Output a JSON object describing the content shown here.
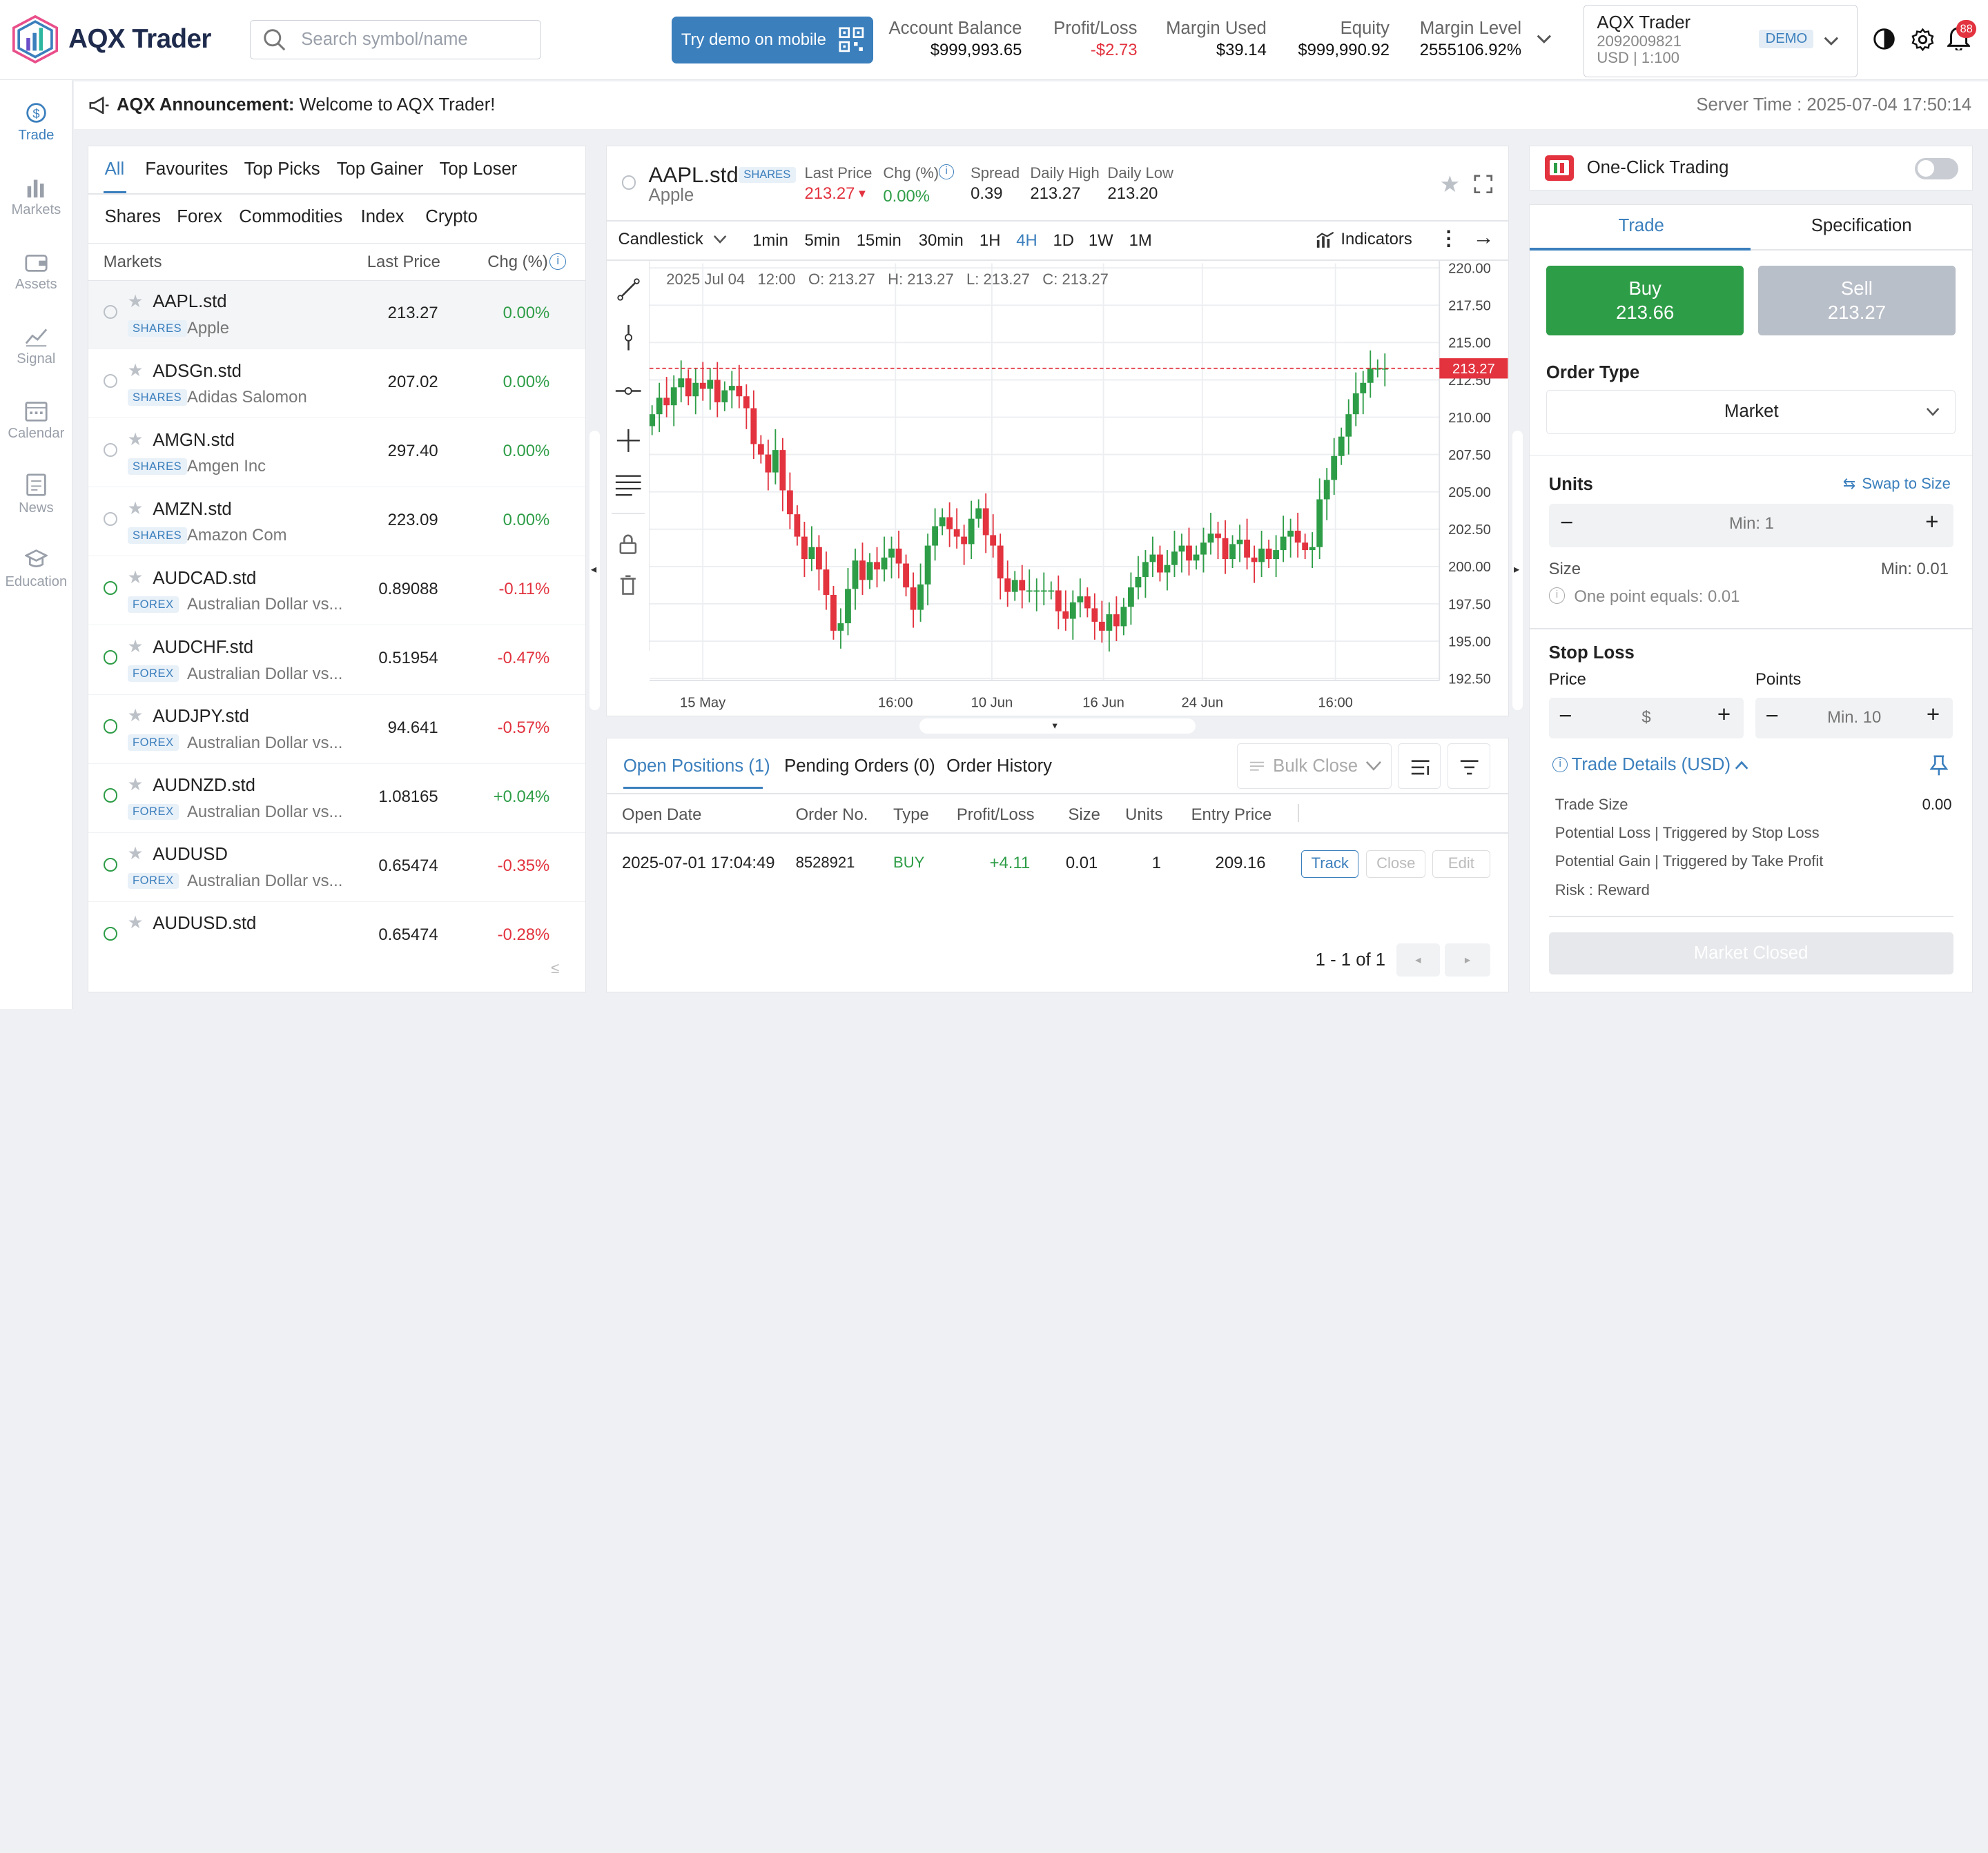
{
  "header": {
    "logo": "AQX Trader",
    "search_placeholder": "Search symbol/name",
    "demo_button": "Try demo on mobile",
    "stats": [
      {
        "label": "Account Balance",
        "value": "$999,993.65",
        "color": "#111"
      },
      {
        "label": "Profit/Loss",
        "value": "-$2.73",
        "color": "#e2333f"
      },
      {
        "label": "Margin Used",
        "value": "$39.14",
        "color": "#111"
      },
      {
        "label": "Equity",
        "value": "$999,990.92",
        "color": "#111"
      },
      {
        "label": "Margin Level",
        "value": "2555106.92%",
        "color": "#111"
      }
    ],
    "account": {
      "name": "AQX Trader",
      "number": "2092009821",
      "leverage": "USD | 1:100",
      "badge": "DEMO"
    },
    "notifications": "88"
  },
  "sidebar": [
    {
      "label": "Trade",
      "icon": "trade-icon",
      "active": true
    },
    {
      "label": "Markets",
      "icon": "markets-icon"
    },
    {
      "label": "Assets",
      "icon": "assets-icon"
    },
    {
      "label": "Signal",
      "icon": "signal-icon"
    },
    {
      "label": "Calendar",
      "icon": "calendar-icon"
    },
    {
      "label": "News",
      "icon": "news-icon"
    },
    {
      "label": "Education",
      "icon": "education-icon"
    }
  ],
  "announcement": {
    "title": "AQX Announcement:",
    "text": "Welcome to AQX Trader!",
    "server_time": "Server Time : 2025-07-04 17:50:14"
  },
  "markets": {
    "tabs": [
      "All",
      "Favourites",
      "Top Picks",
      "Top Gainer",
      "Top Loser"
    ],
    "categories": [
      "Shares",
      "Forex",
      "Commodities",
      "Index",
      "Crypto"
    ],
    "columns": [
      "Markets",
      "Last Price",
      "Chg (%)"
    ],
    "rows": [
      {
        "symbol": "AAPL.std",
        "category": "SHARES",
        "name": "Apple",
        "price": "213.27",
        "change": "0.00%"
      },
      {
        "symbol": "ADSGn.std",
        "category": "SHARES",
        "name": "Adidas Salomon",
        "price": "207.02",
        "change": "0.00%"
      },
      {
        "symbol": "AMGN.std",
        "category": "SHARES",
        "name": "Amgen Inc",
        "price": "297.40",
        "change": "0.00%"
      },
      {
        "symbol": "AMZN.std",
        "category": "SHARES",
        "name": "Amazon Com",
        "price": "223.09",
        "change": "0.00%"
      },
      {
        "symbol": "AUDCAD.std",
        "category": "FOREX",
        "name": "Australian Dollar vs...",
        "price": "0.89088",
        "change": "-0.11%"
      },
      {
        "symbol": "AUDCHF.std",
        "category": "FOREX",
        "name": "Australian Dollar vs...",
        "price": "0.51954",
        "change": "-0.47%"
      },
      {
        "symbol": "AUDJPY.std",
        "category": "FOREX",
        "name": "Australian Dollar vs...",
        "price": "94.641",
        "change": "-0.57%"
      },
      {
        "symbol": "AUDNZD.std",
        "category": "FOREX",
        "name": "Australian Dollar vs...",
        "price": "1.08165",
        "change": "+0.04%"
      },
      {
        "symbol": "AUDUSD",
        "category": "FOREX",
        "name": "Australian Dollar vs...",
        "price": "0.65474",
        "change": "-0.35%"
      },
      {
        "symbol": "AUDUSD.std",
        "category": "",
        "name": "",
        "price": "0.65474",
        "change": "-0.28%"
      }
    ]
  },
  "instrument": {
    "symbol": "AAPL.std",
    "category": "SHARES",
    "name": "Apple",
    "last_price_label": "Last Price",
    "last_price": "213.27",
    "chg_label": "Chg (%)",
    "chg": "0.00%",
    "spread_label": "Spread",
    "spread": "0.39",
    "high_label": "Daily High",
    "high": "213.27",
    "low_label": "Daily Low",
    "low": "213.20"
  },
  "chart_toolbar": {
    "chart_type": "Candlestick",
    "timeframes": [
      "1min",
      "5min",
      "15min",
      "30min",
      "1H",
      "4H",
      "1D",
      "1W",
      "1M"
    ],
    "active_timeframe": "4H",
    "indicators": "Indicators"
  },
  "chart_data": {
    "type": "candlestick",
    "ohlc_readout": "2025 Jul 04   12:00   O: 213.27   H: 213.27   L: 213.27   C: 213.27",
    "y_ticks": [
      "220.00",
      "217.50",
      "215.00",
      "212.50",
      "210.00",
      "207.50",
      "205.00",
      "202.50",
      "200.00",
      "197.50",
      "195.00",
      "192.50"
    ],
    "x_ticks": [
      "15 May",
      "16:00",
      "10 Jun",
      "16 Jun",
      "24 Jun",
      "16:00"
    ],
    "ylim": [
      192.5,
      220.0
    ],
    "current_price": "213.27",
    "current_price_value": 213.27,
    "closes": [
      210.2,
      211.3,
      210.8,
      212.0,
      212.6,
      211.4,
      212.3,
      211.9,
      212.5,
      211.0,
      211.8,
      212.1,
      211.4,
      210.6,
      208.2,
      207.5,
      206.3,
      207.8,
      205.1,
      203.5,
      202.0,
      200.5,
      201.3,
      199.8,
      198.1,
      195.7,
      196.2,
      198.5,
      200.4,
      199.1,
      200.3,
      199.8,
      200.6,
      201.2,
      200.2,
      198.6,
      197.1,
      198.8,
      201.4,
      202.7,
      203.3,
      202.5,
      202.0,
      201.5,
      203.2,
      203.9,
      202.1,
      201.4,
      199.2,
      198.3,
      199.1,
      198.4,
      198.4,
      198.4,
      198.4,
      198.4,
      197.0,
      196.5,
      197.6,
      198.0,
      197.2,
      196.3,
      195.7,
      196.8,
      196.0,
      197.3,
      198.6,
      199.3,
      200.3,
      200.8,
      199.6,
      200.1,
      201.0,
      201.4,
      200.4,
      200.8,
      201.6,
      202.2,
      201.9,
      200.5,
      201.5,
      201.8,
      200.6,
      200.3,
      201.2,
      200.5,
      201.1,
      202.0,
      202.4,
      201.6,
      201.1,
      201.3,
      204.5,
      205.8,
      207.4,
      208.7,
      210.2,
      211.6,
      212.3,
      213.27,
      213.27,
      213.27
    ]
  },
  "positions": {
    "tabs": [
      "Open Positions (1)",
      "Pending Orders (0)",
      "Order History"
    ],
    "bulk_close": "Bulk Close",
    "columns": [
      "Open Date",
      "Order No.",
      "Type",
      "Profit/Loss",
      "Size",
      "Units",
      "Entry Price"
    ],
    "rows": [
      {
        "date": "2025-07-01 17:04:49",
        "order": "8528921",
        "type": "BUY",
        "pl": "+4.11",
        "size": "0.01",
        "units": "1",
        "entry": "209.16"
      }
    ],
    "actions": [
      "Track",
      "Close",
      "Edit"
    ],
    "pagination": "1 - 1 of 1"
  },
  "trade_panel": {
    "one_click": "One-Click Trading",
    "tabs": [
      "Trade",
      "Specification"
    ],
    "buy_label": "Buy",
    "buy_price": "213.66",
    "sell_label": "Sell",
    "sell_price": "213.27",
    "order_type_label": "Order Type",
    "order_type": "Market",
    "units_label": "Units",
    "swap_label": "Swap to Size",
    "units_placeholder": "Min: 1",
    "size_label": "Size",
    "size_min": "Min: 0.01",
    "point_info": "One point equals: 0.01",
    "stop_loss_label": "Stop Loss",
    "price_label": "Price",
    "points_label": "Points",
    "price_placeholder": "$",
    "points_placeholder": "Min. 10",
    "trade_details": "Trade Details (USD)",
    "details": [
      {
        "label": "Trade Size",
        "value": "0.00"
      },
      {
        "label": "Potential Loss | Triggered by Stop Loss",
        "value": ""
      },
      {
        "label": "Potential Gain | Triggered by Take Profit",
        "value": ""
      },
      {
        "label": "Risk : Reward",
        "value": ""
      }
    ],
    "submit": "Market Closed"
  }
}
